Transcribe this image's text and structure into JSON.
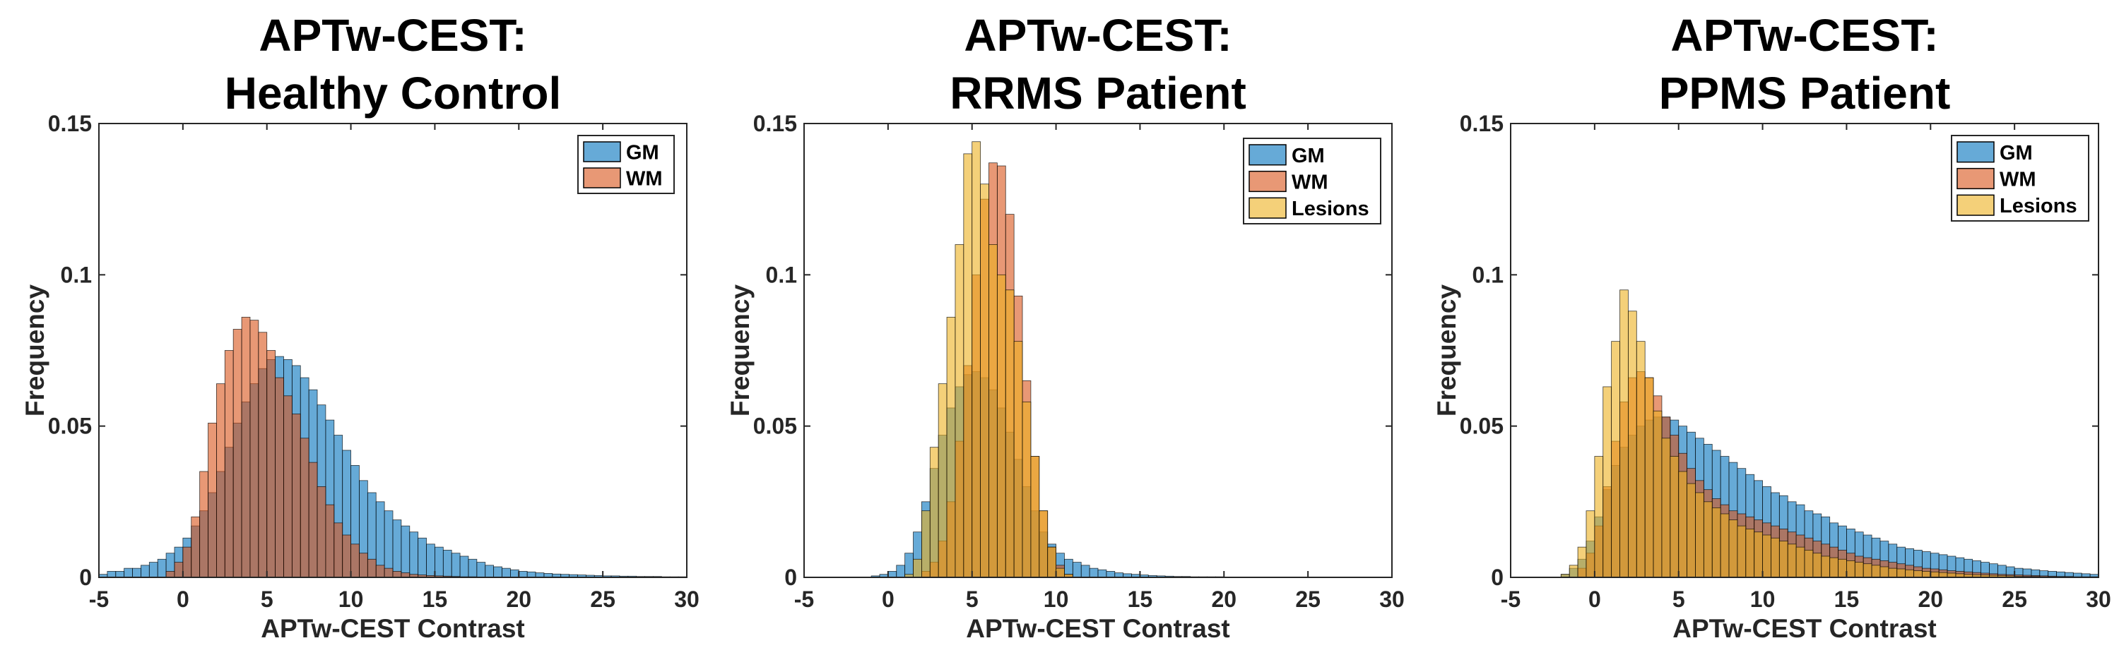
{
  "colors": {
    "GM": "#0072BD",
    "WM": "#D95319",
    "Lesions": "#EDB120",
    "edge": "#000000",
    "axis": "#262626"
  },
  "chart_data": [
    {
      "type": "histogram",
      "title_lines": [
        "APTw-CEST:",
        "Healthy Control"
      ],
      "xlabel": "APTw-CEST Contrast",
      "ylabel": "Frequency",
      "xlim": [
        -5,
        30
      ],
      "ylim": [
        0,
        0.15
      ],
      "xticks": [
        "-5",
        "0",
        "5",
        "10",
        "15",
        "20",
        "25",
        "30"
      ],
      "yticks": [
        "0",
        "0.05",
        "0.1",
        "0.15"
      ],
      "bin_width": 0.5,
      "legend": [
        "GM",
        "WM"
      ],
      "series": [
        {
          "name": "GM",
          "x_start": -5,
          "values": [
            0.001,
            0.002,
            0.002,
            0.003,
            0.003,
            0.004,
            0.005,
            0.006,
            0.008,
            0.01,
            0.013,
            0.017,
            0.022,
            0.028,
            0.035,
            0.043,
            0.051,
            0.058,
            0.064,
            0.069,
            0.072,
            0.073,
            0.072,
            0.07,
            0.066,
            0.062,
            0.057,
            0.052,
            0.047,
            0.042,
            0.037,
            0.032,
            0.028,
            0.025,
            0.022,
            0.019,
            0.017,
            0.015,
            0.013,
            0.011,
            0.01,
            0.009,
            0.008,
            0.007,
            0.006,
            0.005,
            0.004,
            0.0035,
            0.003,
            0.0025,
            0.002,
            0.0018,
            0.0015,
            0.0013,
            0.0011,
            0.001,
            0.0009,
            0.0008,
            0.0007,
            0.0006,
            0.0005,
            0.0005,
            0.0004,
            0.0004,
            0.0003,
            0.0003,
            0.0003,
            0.0002,
            0.0002,
            0.0002
          ]
        },
        {
          "name": "WM",
          "x_start": -1,
          "values": [
            0.002,
            0.005,
            0.01,
            0.02,
            0.035,
            0.051,
            0.064,
            0.075,
            0.082,
            0.086,
            0.085,
            0.081,
            0.075,
            0.066,
            0.06,
            0.054,
            0.046,
            0.038,
            0.03,
            0.024,
            0.018,
            0.014,
            0.011,
            0.008,
            0.006,
            0.004,
            0.003,
            0.002,
            0.0015,
            0.001,
            0.0008,
            0.0006,
            0.0005,
            0.0004,
            0.0003,
            0.0002,
            0.0002,
            0.0001,
            0.0001,
            0.0001
          ]
        }
      ]
    },
    {
      "type": "histogram",
      "title_lines": [
        "APTw-CEST:",
        "RRMS Patient"
      ],
      "xlabel": "APTw-CEST Contrast",
      "ylabel": "Frequency",
      "xlim": [
        -5,
        30
      ],
      "ylim": [
        0,
        0.15
      ],
      "xticks": [
        "-5",
        "0",
        "5",
        "10",
        "15",
        "20",
        "25",
        "30"
      ],
      "yticks": [
        "0",
        "0.05",
        "0.1",
        "0.15"
      ],
      "bin_width": 0.5,
      "legend": [
        "GM",
        "WM",
        "Lesions"
      ],
      "series": [
        {
          "name": "GM",
          "x_start": -1,
          "values": [
            0.0005,
            0.001,
            0.002,
            0.004,
            0.008,
            0.015,
            0.025,
            0.036,
            0.047,
            0.056,
            0.063,
            0.067,
            0.068,
            0.066,
            0.062,
            0.056,
            0.048,
            0.039,
            0.03,
            0.022,
            0.015,
            0.011,
            0.008,
            0.006,
            0.005,
            0.004,
            0.003,
            0.0025,
            0.002,
            0.0015,
            0.0012,
            0.001,
            0.0008,
            0.0006,
            0.0005,
            0.0004,
            0.0003,
            0.0003,
            0.0002,
            0.0002,
            0.0002,
            0.0002,
            0.0001,
            0.0001,
            0.0001,
            0.0001
          ]
        },
        {
          "name": "WM",
          "x_start": 2,
          "values": [
            0.002,
            0.005,
            0.012,
            0.025,
            0.045,
            0.07,
            0.1,
            0.125,
            0.137,
            0.136,
            0.12,
            0.093,
            0.065,
            0.04,
            0.022,
            0.01,
            0.004,
            0.001
          ]
        },
        {
          "name": "Lesions",
          "x_start": 1,
          "values": [
            0.001,
            0.006,
            0.022,
            0.043,
            0.064,
            0.086,
            0.11,
            0.14,
            0.144,
            0.13,
            0.11,
            0.1,
            0.095,
            0.078,
            0.058,
            0.04,
            0.022,
            0.01,
            0.003,
            0.001
          ]
        }
      ]
    },
    {
      "type": "histogram",
      "title_lines": [
        "APTw-CEST:",
        "PPMS Patient"
      ],
      "xlabel": "APTw-CEST Contrast",
      "ylabel": "Frequency",
      "xlim": [
        -5,
        30
      ],
      "ylim": [
        0,
        0.15
      ],
      "xticks": [
        "-5",
        "0",
        "5",
        "10",
        "15",
        "20",
        "25",
        "30"
      ],
      "yticks": [
        "0",
        "0.05",
        "0.1",
        "0.15"
      ],
      "bin_width": 0.5,
      "legend": [
        "GM",
        "WM",
        "Lesions"
      ],
      "series": [
        {
          "name": "GM",
          "x_start": -2,
          "values": [
            0.001,
            0.003,
            0.006,
            0.012,
            0.02,
            0.029,
            0.037,
            0.043,
            0.047,
            0.05,
            0.052,
            0.053,
            0.053,
            0.052,
            0.05,
            0.048,
            0.046,
            0.044,
            0.042,
            0.04,
            0.038,
            0.036,
            0.034,
            0.032,
            0.03,
            0.028,
            0.027,
            0.025,
            0.024,
            0.022,
            0.021,
            0.02,
            0.018,
            0.017,
            0.016,
            0.015,
            0.014,
            0.013,
            0.012,
            0.011,
            0.01,
            0.0095,
            0.009,
            0.0085,
            0.008,
            0.0075,
            0.007,
            0.0065,
            0.006,
            0.0055,
            0.005,
            0.0045,
            0.004,
            0.0035,
            0.003,
            0.0028,
            0.0025,
            0.0022,
            0.002,
            0.0018,
            0.0016,
            0.0014,
            0.0012,
            0.001
          ]
        },
        {
          "name": "WM",
          "x_start": -1,
          "values": [
            0.003,
            0.008,
            0.017,
            0.03,
            0.045,
            0.058,
            0.066,
            0.068,
            0.066,
            0.06,
            0.053,
            0.047,
            0.041,
            0.036,
            0.032,
            0.029,
            0.026,
            0.024,
            0.022,
            0.021,
            0.02,
            0.019,
            0.018,
            0.017,
            0.016,
            0.015,
            0.014,
            0.013,
            0.012,
            0.011,
            0.01,
            0.009,
            0.008,
            0.007,
            0.0065,
            0.006,
            0.0055,
            0.005,
            0.0045,
            0.004,
            0.0035,
            0.003,
            0.0028,
            0.0025,
            0.0022,
            0.002,
            0.0018,
            0.0016,
            0.0014,
            0.0012,
            0.001,
            0.0009,
            0.0008,
            0.0007,
            0.0006,
            0.0005,
            0.0004,
            0.0003,
            0.0003,
            0.0002,
            0.0002,
            0.0002
          ]
        },
        {
          "name": "Lesions",
          "x_start": -2,
          "values": [
            0.001,
            0.004,
            0.01,
            0.022,
            0.04,
            0.063,
            0.078,
            0.095,
            0.088,
            0.078,
            0.066,
            0.055,
            0.046,
            0.04,
            0.035,
            0.031,
            0.028,
            0.025,
            0.023,
            0.021,
            0.019,
            0.017,
            0.016,
            0.015,
            0.014,
            0.013,
            0.012,
            0.011,
            0.01,
            0.009,
            0.008,
            0.007,
            0.0065,
            0.006,
            0.0055,
            0.005,
            0.0045,
            0.004,
            0.0035,
            0.003,
            0.0028,
            0.0025,
            0.0022,
            0.002,
            0.0018,
            0.0016,
            0.0014,
            0.0012,
            0.001,
            0.0009,
            0.0008,
            0.0007,
            0.0006,
            0.0005,
            0.0004,
            0.0003,
            0.0003,
            0.0002,
            0.0002,
            0.0002
          ]
        }
      ]
    }
  ]
}
